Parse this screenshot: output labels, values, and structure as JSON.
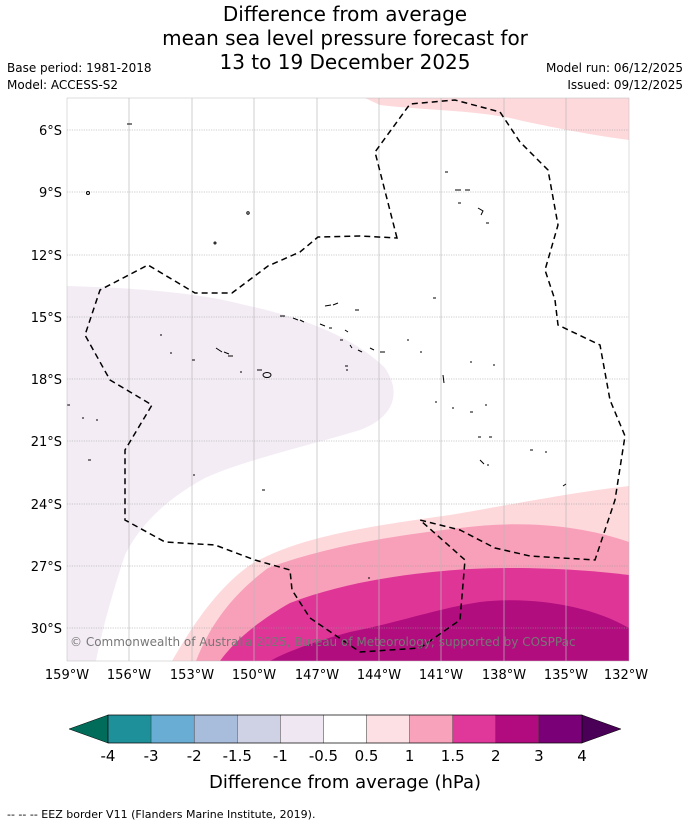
{
  "title": {
    "line1": "Difference from average",
    "line2": "mean sea level pressure forecast for",
    "line3": "13 to 19 December 2025"
  },
  "meta": {
    "base_period": "Base period: 1981-2018",
    "model": "Model: ACCESS-S2",
    "model_run": "Model run: 06/12/2025",
    "issued": "Issued: 09/12/2025"
  },
  "map": {
    "lat_ticks": [
      "6°S",
      "9°S",
      "12°S",
      "15°S",
      "18°S",
      "21°S",
      "24°S",
      "27°S",
      "30°S"
    ],
    "lon_ticks": [
      "159°W",
      "156°W",
      "153°W",
      "150°W",
      "147°W",
      "144°W",
      "141°W",
      "138°W",
      "135°W",
      "132°W"
    ],
    "copyright": "© Commonwealth of Australia 2025, Bureau of Meteorology; supported by COSPPac",
    "fill_colors": {
      "neg_half": "#f3ecf5",
      "pos_half": "#fdd9dc",
      "pos_one": "#f89fb9",
      "pos_onehalf": "#de3597",
      "pos_two": "#b20d7e"
    }
  },
  "colorbar": {
    "labels": [
      "-4",
      "-3",
      "-2",
      "-1.5",
      "-1",
      "-0.5",
      "0.5",
      "1",
      "1.5",
      "2",
      "3",
      "4"
    ],
    "colors": [
      "#1e9099",
      "#6aadd4",
      "#a8bddc",
      "#cfd2e5",
      "#efe8f3",
      "#ffffff",
      "#fde0e3",
      "#f8a3bb",
      "#df389a",
      "#b10b7f",
      "#7a0077"
    ],
    "under_color": "#016c59",
    "over_color": "#4a0056",
    "label": "Difference from average (hPa)"
  },
  "footer": {
    "eez_note": "-- -- -- EEZ border V11 (Flanders Marine Institute, 2019)."
  }
}
